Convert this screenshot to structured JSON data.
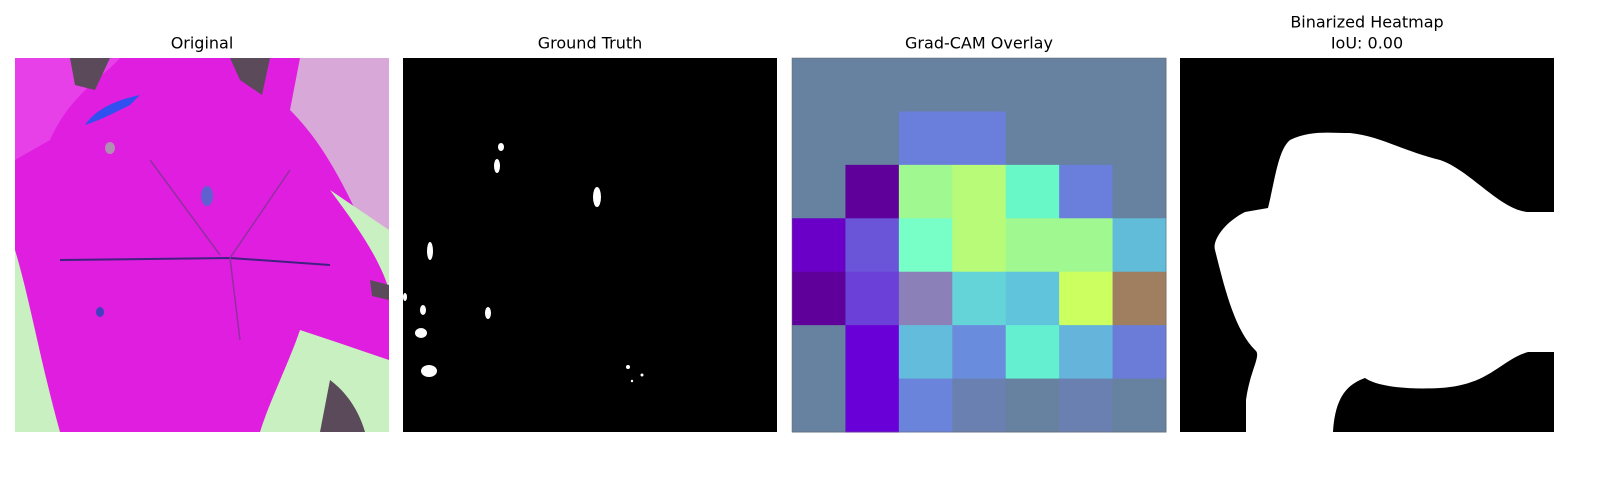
{
  "panels": [
    {
      "title": "Original"
    },
    {
      "title": "Ground Truth"
    },
    {
      "title": "Grad-CAM Overlay"
    },
    {
      "title": "Binarized Heatmap",
      "subtitle": "IoU: 0.00"
    }
  ]
}
